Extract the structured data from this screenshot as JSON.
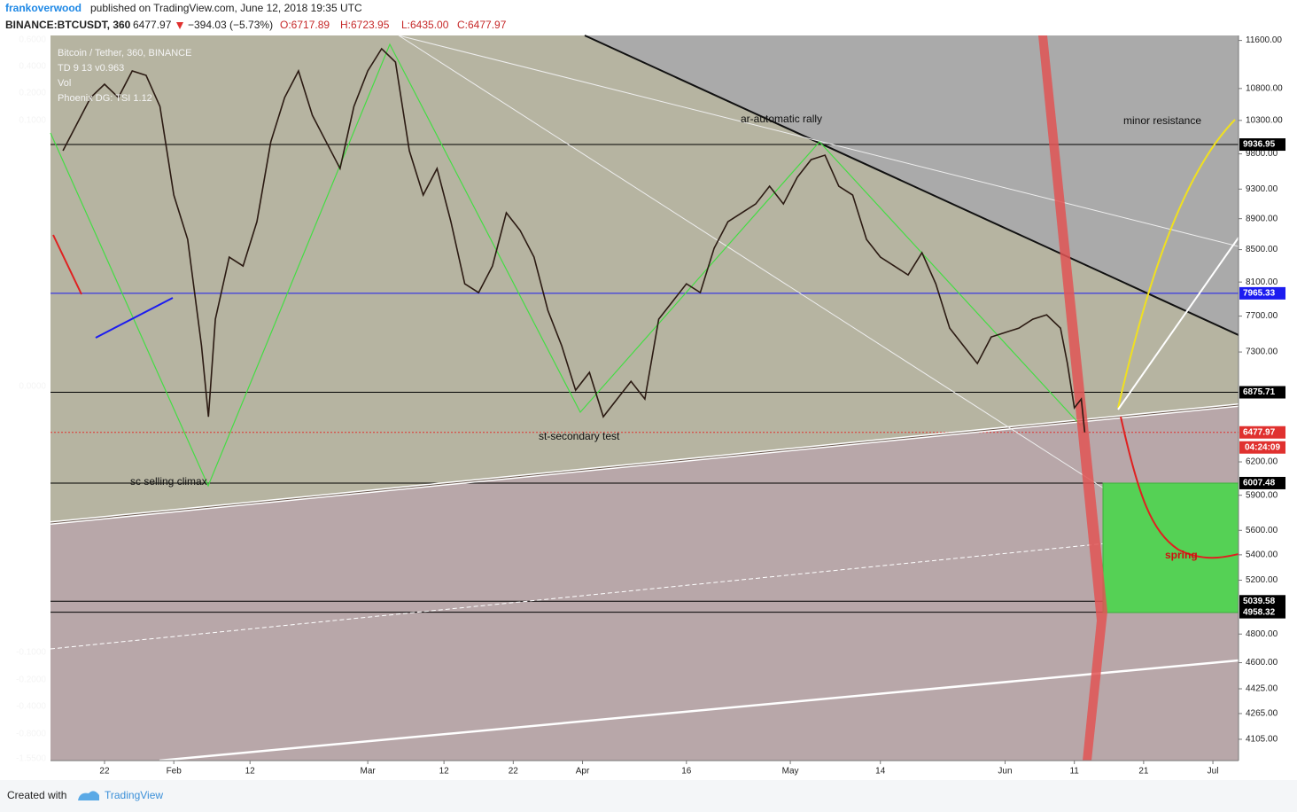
{
  "header": {
    "author": "frankoverwood",
    "published": "published on TradingView.com, June 12, 2018 19:35 UTC"
  },
  "symbol_line": {
    "symbol": "BINANCE:BTCUSDT, 360",
    "last": "6477.97",
    "change": "−394.03 (−5.73%)",
    "open": "O:6717.89",
    "high": "H:6723.95",
    "low": "L:6435.00",
    "close": "C:6477.97"
  },
  "footer": {
    "created": "Created with",
    "brand": "TradingView"
  },
  "chart_data": {
    "type": "line",
    "log_scale": true,
    "series": [
      {
        "name": "Bitcoin / Tether, 360, BINANCE",
        "color": "#2b1a12",
        "x": [
          16,
          18,
          20,
          22,
          24,
          26,
          28,
          30,
          32,
          34,
          36,
          37,
          38,
          40,
          42,
          44,
          46,
          48,
          50,
          52,
          54,
          56,
          58,
          60,
          62,
          64,
          66,
          68,
          70,
          72,
          74,
          76,
          78,
          80,
          82,
          84,
          86,
          88,
          90,
          92,
          94,
          96,
          98,
          100,
          102,
          104,
          106,
          108,
          110,
          112,
          114,
          116,
          118,
          120,
          122,
          124,
          126,
          128,
          130,
          132,
          134,
          136,
          138,
          140,
          142,
          144,
          146,
          148,
          150,
          152,
          154,
          156,
          158,
          160,
          161,
          162,
          163,
          163.5
        ],
        "values": [
          9846,
          10243,
          10656,
          10869,
          10656,
          11086,
          11013,
          10516,
          9218,
          8630,
          7367,
          6630,
          7665,
          8406,
          8295,
          8861,
          9976,
          10656,
          11086,
          10379,
          9976,
          9589,
          10516,
          11086,
          11458,
          11233,
          9846,
          9218,
          9589,
          8861,
          8079,
          7974,
          8295,
          8978,
          8745,
          8406,
          7766,
          7367,
          6897,
          7082,
          6630,
          6807,
          6989,
          6807,
          7665,
          7869,
          8079,
          7974,
          8517,
          8861,
          8978,
          9097,
          9340,
          9097,
          9464,
          9716,
          9781,
          9340,
          9218,
          8630,
          8406,
          8295,
          8186,
          8461,
          8079,
          7564,
          7367,
          7176,
          7465,
          7514,
          7564,
          7665,
          7715,
          7564,
          7176,
          6719,
          6807,
          6477.97
        ]
      }
    ],
    "legend_lines": [
      "TD 9 13 v0.963",
      "Vol",
      "Phoenix DG: TSI 1.12"
    ],
    "xlim": [
      14.2,
      185.7
    ],
    "xticks": [
      {
        "value": 22,
        "label": "22"
      },
      {
        "value": 32,
        "label": "Feb"
      },
      {
        "value": 43,
        "label": "12"
      },
      {
        "value": 60,
        "label": "Mar"
      },
      {
        "value": 71,
        "label": "12"
      },
      {
        "value": 81,
        "label": "22"
      },
      {
        "value": 91,
        "label": "Apr"
      },
      {
        "value": 106,
        "label": "16"
      },
      {
        "value": 121,
        "label": "May"
      },
      {
        "value": 134,
        "label": "14"
      },
      {
        "value": 152,
        "label": "Jun"
      },
      {
        "value": 162,
        "label": "11"
      },
      {
        "value": 172,
        "label": "21"
      },
      {
        "value": 182,
        "label": "Jul"
      }
    ],
    "ylim": [
      3977,
      11686
    ],
    "yticks": [
      {
        "value": 11600,
        "label": "11600.00"
      },
      {
        "value": 10800,
        "label": "10800.00"
      },
      {
        "value": 10300,
        "label": "10300.00"
      },
      {
        "value": 9800,
        "label": "9800.00"
      },
      {
        "value": 9300,
        "label": "9300.00"
      },
      {
        "value": 8900,
        "label": "8900.00"
      },
      {
        "value": 8500,
        "label": "8500.00"
      },
      {
        "value": 8100,
        "label": "8100.00"
      },
      {
        "value": 7700,
        "label": "7700.00"
      },
      {
        "value": 7300,
        "label": "7300.00"
      },
      {
        "value": 6200,
        "label": "6200.00"
      },
      {
        "value": 5900,
        "label": "5900.00"
      },
      {
        "value": 5600,
        "label": "5600.00"
      },
      {
        "value": 5400,
        "label": "5400.00"
      },
      {
        "value": 5200,
        "label": "5200.00"
      },
      {
        "value": 4800,
        "label": "4800.00"
      },
      {
        "value": 4600,
        "label": "4600.00"
      },
      {
        "value": 4425,
        "label": "4425.00"
      },
      {
        "value": 4265,
        "label": "4265.00"
      },
      {
        "value": 4105,
        "label": "4105.00"
      }
    ],
    "levels": [
      {
        "value": 9936.95,
        "label": "9936.95",
        "color": "#000000"
      },
      {
        "value": 7965.33,
        "label": "7965.33",
        "color": "#1c1cf0"
      },
      {
        "value": 6875.71,
        "label": "6875.71",
        "color": "#000000"
      },
      {
        "value": 6477.97,
        "label": "6477.97",
        "color": "#e0312f"
      },
      {
        "value": 6007.48,
        "label": "6007.48",
        "color": "#000000"
      },
      {
        "value": 5039.58,
        "label": "5039.58",
        "color": "#000000"
      },
      {
        "value": 4958.32,
        "label": "4958.32",
        "color": "#000000"
      }
    ],
    "countdown": "04:24:09",
    "left_axis_ticks": [
      "0.6000",
      "0.4000",
      "0.2000",
      "0.1000",
      "0.0000",
      "-0.1000",
      "-0.2000",
      "-0.4000",
      "-0.8000",
      "-1.5500"
    ],
    "annotations": [
      "minor resistance",
      "ar-automatic rally",
      "st-secondary test",
      "sc selling climax",
      "spring"
    ]
  }
}
